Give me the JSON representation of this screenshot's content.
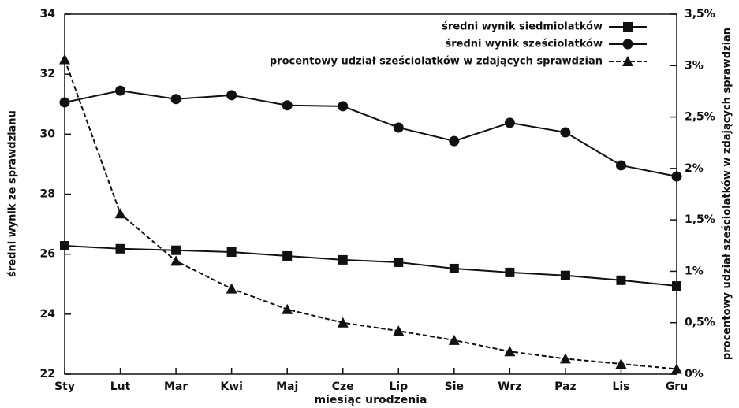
{
  "chart_data": {
    "type": "line",
    "x_label": "miesiąc urodzenia",
    "y_label": "średni wynik ze sprawdzianu",
    "y2_label": "procentowy udział sześciolatków w zdających sprawdzian",
    "categories": [
      "Sty",
      "Lut",
      "Mar",
      "Kwi",
      "Maj",
      "Cze",
      "Lip",
      "Sie",
      "Wrz",
      "Paz",
      "Lis",
      "Gru"
    ],
    "series": [
      {
        "name": "średni wynik siedmiolatków",
        "color": "#111111",
        "marker": "square",
        "dashed": false,
        "values": [
          26.28,
          26.18,
          26.13,
          26.07,
          25.94,
          25.81,
          25.73,
          25.52,
          25.39,
          25.29,
          25.13,
          24.94
        ]
      },
      {
        "name": "średni wynik sześciolatków",
        "color": "#111111",
        "marker": "circle",
        "dashed": false,
        "values": [
          31.06,
          31.45,
          31.17,
          31.3,
          30.96,
          30.93,
          30.22,
          29.77,
          30.38,
          30.06,
          28.96,
          28.59
        ]
      },
      {
        "name": "procentowy udział sześciolatków w zdających sprawdzian",
        "color": "#111111",
        "marker": "triangle",
        "dashed": true,
        "axis": "y2",
        "values": [
          3.06,
          1.56,
          1.1,
          0.83,
          0.63,
          0.5,
          0.42,
          0.33,
          0.22,
          0.15,
          0.1,
          0.05
        ]
      }
    ],
    "ylim": [
      22,
      34
    ],
    "yticks": [
      22,
      24,
      26,
      28,
      30,
      32,
      34
    ],
    "y2lim": [
      0,
      3.5
    ],
    "y2ticks": [
      {
        "value": 0,
        "label": "0%"
      },
      {
        "value": 0.5,
        "label": "0,5%"
      },
      {
        "value": 1,
        "label": "1%"
      },
      {
        "value": 1.5,
        "label": "1,5%"
      },
      {
        "value": 2,
        "label": "2%"
      },
      {
        "value": 2.5,
        "label": "2,5%"
      },
      {
        "value": 3,
        "label": "3%"
      },
      {
        "value": 3.5,
        "label": "3,5%"
      }
    ],
    "legend": "top-right"
  }
}
